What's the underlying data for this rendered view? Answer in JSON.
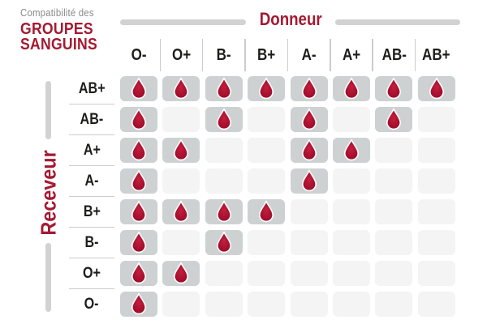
{
  "title": {
    "kicker": "Compatibilité des",
    "line1": "GROUPES",
    "line2": "SANGUINS"
  },
  "donor_axis_label": "Donneur",
  "receiver_axis_label": "Receveur",
  "chart_data": {
    "type": "table",
    "title": "Compatibilité des groupes sanguins",
    "columns_axis_label": "Donneur",
    "rows_axis_label": "Receveur",
    "columns": [
      "O-",
      "O+",
      "B-",
      "B+",
      "A-",
      "A+",
      "AB-",
      "AB+"
    ],
    "rows": [
      "AB+",
      "AB-",
      "A+",
      "A-",
      "B+",
      "B-",
      "O+",
      "O-"
    ],
    "cell_marker": "blood-drop-icon",
    "matrix": [
      [
        1,
        1,
        1,
        1,
        1,
        1,
        1,
        1
      ],
      [
        1,
        0,
        1,
        0,
        1,
        0,
        1,
        0
      ],
      [
        1,
        1,
        0,
        0,
        1,
        1,
        0,
        0
      ],
      [
        1,
        0,
        0,
        0,
        1,
        0,
        0,
        0
      ],
      [
        1,
        1,
        1,
        1,
        0,
        0,
        0,
        0
      ],
      [
        1,
        0,
        1,
        0,
        0,
        0,
        0,
        0
      ],
      [
        1,
        1,
        0,
        0,
        0,
        0,
        0,
        0
      ],
      [
        1,
        0,
        0,
        0,
        0,
        0,
        0,
        0
      ]
    ]
  },
  "colors": {
    "accent_red": "#a41931",
    "drop_red": "#ab1130",
    "cell_on_gray": "#cdd1d2",
    "cell_off_gray": "#f4f4f5",
    "rule_gray": "#cccccc",
    "text_dark": "#1d1d1b",
    "text_gray": "#8a8a8a"
  }
}
